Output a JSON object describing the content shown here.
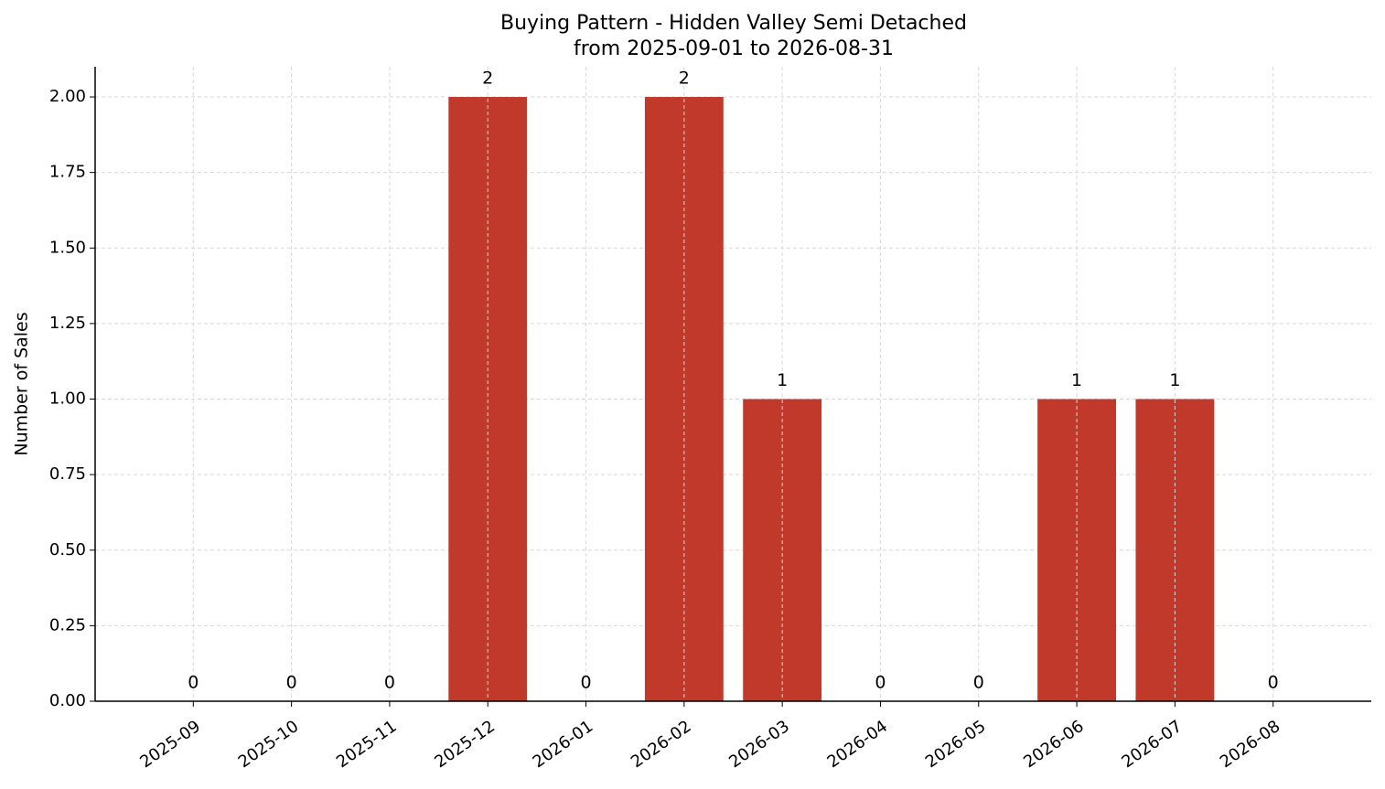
{
  "chart_data": {
    "type": "bar",
    "title": "Buying Pattern - Hidden Valley Semi Detached",
    "subtitle": "from 2025-09-01 to 2026-08-31",
    "y_label": "Number of Sales",
    "categories": [
      "2025-09",
      "2025-10",
      "2025-11",
      "2025-12",
      "2026-01",
      "2026-02",
      "2026-03",
      "2026-04",
      "2026-05",
      "2026-06",
      "2026-07",
      "2026-08"
    ],
    "values": [
      0,
      0,
      0,
      2,
      0,
      2,
      1,
      0,
      0,
      1,
      1,
      0
    ],
    "color": "#c0392b",
    "ylim": [
      0,
      2.1
    ],
    "yticks": [
      {
        "value": 0,
        "label": "0.00"
      },
      {
        "value": 0.25,
        "label": "0.25"
      },
      {
        "value": 0.5,
        "label": "0.50"
      },
      {
        "value": 0.75,
        "label": "0.75"
      },
      {
        "value": 1,
        "label": "1.00"
      },
      {
        "value": 1.25,
        "label": "1.25"
      },
      {
        "value": 1.5,
        "label": "1.50"
      },
      {
        "value": 1.75,
        "label": "1.75"
      },
      {
        "value": 2,
        "label": "2.00"
      }
    ],
    "grid": true
  }
}
